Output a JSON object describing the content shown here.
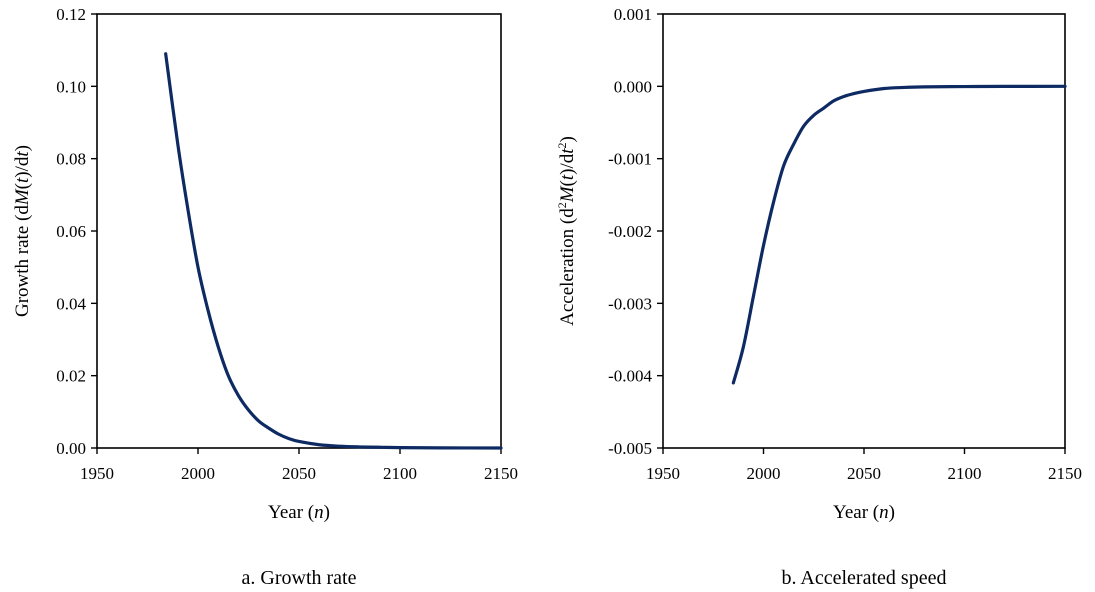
{
  "chart_data": [
    {
      "type": "line",
      "caption": "a. Growth rate",
      "xlabel": {
        "base": "Year (",
        "italic": "n",
        "tail": ")"
      },
      "ylabel": {
        "parts": [
          "Growth rate (d",
          "M",
          "(",
          "t",
          ")/d",
          "t",
          ")"
        ]
      },
      "xlim": [
        1950,
        2150
      ],
      "ylim": [
        0,
        0.12
      ],
      "xticks": [
        "1950",
        "2000",
        "2050",
        "2100",
        "2150"
      ],
      "yticks": [
        "0.00",
        "0.02",
        "0.04",
        "0.06",
        "0.08",
        "0.10",
        "0.12"
      ],
      "grid": false,
      "line_color": "#0d2a63",
      "series": [
        {
          "x": [
            1984,
            1990,
            1995,
            2000,
            2005,
            2010,
            2015,
            2020,
            2025,
            2030,
            2035,
            2040,
            2045,
            2050,
            2060,
            2070,
            2080,
            2090,
            2100,
            2120,
            2150
          ],
          "y": [
            0.109,
            0.084,
            0.066,
            0.05,
            0.038,
            0.028,
            0.02,
            0.0145,
            0.0105,
            0.0075,
            0.0055,
            0.0038,
            0.0026,
            0.0018,
            0.0009,
            0.0005,
            0.0003,
            0.0002,
            0.0001,
            4e-05,
            0.0
          ]
        }
      ]
    },
    {
      "type": "line",
      "caption": "b. Accelerated speed",
      "xlabel": {
        "base": "Year (",
        "italic": "n",
        "tail": ")"
      },
      "ylabel": {
        "parts": [
          "Acceleration (d",
          "2",
          "M",
          "(",
          "t",
          ")/d",
          "t",
          "2",
          ")"
        ]
      },
      "xlim": [
        1950,
        2150
      ],
      "ylim": [
        -0.005,
        0.001
      ],
      "xticks": [
        "1950",
        "2000",
        "2050",
        "2100",
        "2150"
      ],
      "yticks": [
        "-0.005",
        "-0.004",
        "-0.003",
        "-0.002",
        "-0.001",
        "0.000",
        "0.001"
      ],
      "grid": false,
      "line_color": "#0d2a63",
      "series": [
        {
          "x": [
            1985,
            1990,
            1995,
            2000,
            2005,
            2010,
            2015,
            2020,
            2025,
            2030,
            2035,
            2040,
            2045,
            2050,
            2060,
            2070,
            2080,
            2100,
            2120,
            2150
          ],
          "y": [
            -0.0041,
            -0.0036,
            -0.0029,
            -0.0022,
            -0.0016,
            -0.0011,
            -0.0008,
            -0.00055,
            -0.0004,
            -0.0003,
            -0.0002,
            -0.00014,
            -0.0001,
            -7e-05,
            -3e-05,
            -1.5e-05,
            -8e-06,
            -3e-06,
            -1e-06,
            0.0
          ]
        }
      ]
    }
  ]
}
